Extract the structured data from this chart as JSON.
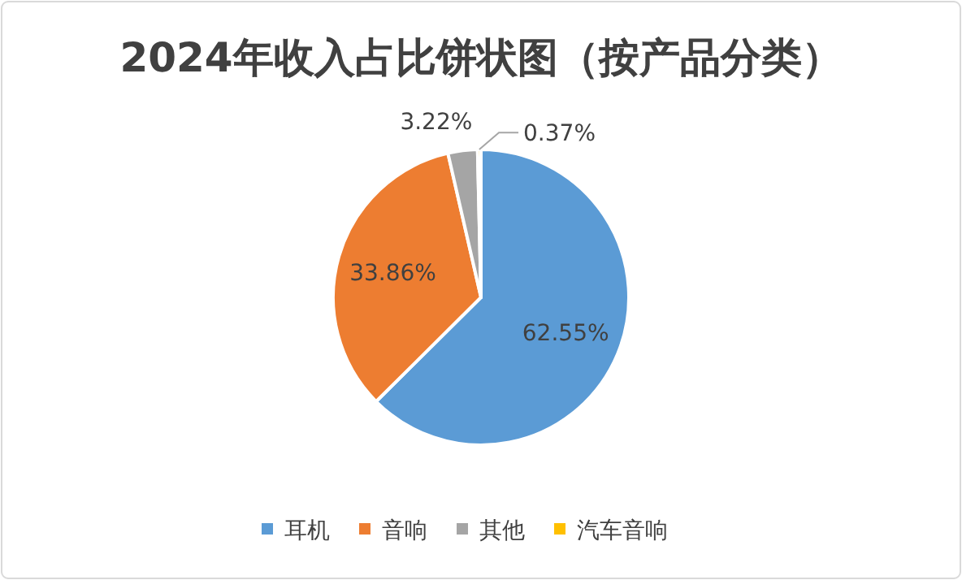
{
  "chart_data": {
    "type": "pie",
    "title": "2024年收入占比饼状图（按产品分类）",
    "categories": [
      "耳机",
      "音响",
      "其他",
      "汽车音响"
    ],
    "values": [
      62.55,
      33.86,
      3.22,
      0.37
    ],
    "value_labels": [
      "62.55%",
      "33.86%",
      "3.22%",
      "0.37%"
    ],
    "colors": [
      "#5b9bd5",
      "#ed7d31",
      "#a5a5a5",
      "#ffc000"
    ],
    "legend": "bottom"
  }
}
